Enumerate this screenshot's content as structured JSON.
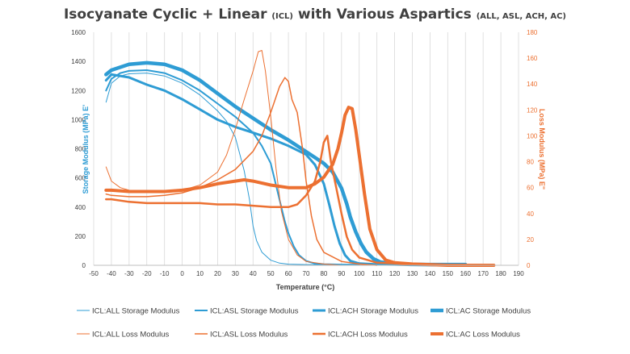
{
  "chart_data": {
    "type": "line",
    "title": {
      "part1": "Isocyanate Cyclic + Linear ",
      "part1_small": "(ICL)",
      "part2": " with Various Aspartics ",
      "part2_small": "(ALL, ASL, ACH, AC)"
    },
    "xlabel": "Temperature (°C)",
    "ylabel_left": "Storage Modulus (MPa) E'",
    "ylabel_right": "Loss Modulus (MPa) E\"",
    "xlim": [
      -50,
      190
    ],
    "ylim_left": [
      0,
      1600
    ],
    "ylim_right": [
      0,
      180
    ],
    "x_ticks": [
      "-50",
      "-40",
      "-30",
      "-20",
      "-10",
      "0",
      "10",
      "20",
      "30",
      "40",
      "50",
      "60",
      "70",
      "80",
      "90",
      "100",
      "110",
      "120",
      "130",
      "140",
      "150",
      "160",
      "170",
      "180",
      "190"
    ],
    "y_left_ticks": [
      "0",
      "200",
      "400",
      "600",
      "800",
      "1000",
      "1200",
      "1400",
      "1600"
    ],
    "y_right_ticks": [
      "0",
      "20",
      "40",
      "60",
      "80",
      "100",
      "120",
      "140",
      "160",
      "180"
    ],
    "grid": "vertical",
    "legend_position": "bottom",
    "colors": {
      "storage": "#2E9CD4",
      "loss": "#EC7031",
      "text": "#404040",
      "grid": "#D9D9D9"
    },
    "series": [
      {
        "name": "ICL:ALL Storage Modulus",
        "axis": "left",
        "width": 1,
        "color": "#2E9CD4",
        "points": [
          [
            -43,
            1120
          ],
          [
            -40,
            1250
          ],
          [
            -35,
            1300
          ],
          [
            -30,
            1315
          ],
          [
            -20,
            1320
          ],
          [
            -10,
            1300
          ],
          [
            0,
            1250
          ],
          [
            10,
            1170
          ],
          [
            20,
            1060
          ],
          [
            25,
            990
          ],
          [
            30,
            880
          ],
          [
            35,
            650
          ],
          [
            38,
            450
          ],
          [
            40,
            270
          ],
          [
            42,
            170
          ],
          [
            45,
            90
          ],
          [
            50,
            35
          ],
          [
            55,
            15
          ],
          [
            60,
            8
          ],
          [
            70,
            5
          ],
          [
            80,
            5
          ]
        ]
      },
      {
        "name": "ICL:ASL Storage Modulus",
        "axis": "left",
        "width": 2,
        "color": "#2E9CD4",
        "points": [
          [
            -43,
            1200
          ],
          [
            -40,
            1280
          ],
          [
            -35,
            1320
          ],
          [
            -30,
            1335
          ],
          [
            -20,
            1340
          ],
          [
            -10,
            1320
          ],
          [
            0,
            1270
          ],
          [
            10,
            1200
          ],
          [
            20,
            1110
          ],
          [
            30,
            1020
          ],
          [
            40,
            910
          ],
          [
            45,
            820
          ],
          [
            50,
            700
          ],
          [
            55,
            450
          ],
          [
            58,
            300
          ],
          [
            60,
            220
          ],
          [
            63,
            130
          ],
          [
            66,
            70
          ],
          [
            70,
            30
          ],
          [
            75,
            12
          ],
          [
            80,
            8
          ],
          [
            90,
            5
          ],
          [
            100,
            5
          ]
        ]
      },
      {
        "name": "ICL:ACH Storage Modulus",
        "axis": "left",
        "width": 3,
        "color": "#2E9CD4",
        "points": [
          [
            -43,
            1270
          ],
          [
            -40,
            1310
          ],
          [
            -30,
            1290
          ],
          [
            -20,
            1240
          ],
          [
            -10,
            1200
          ],
          [
            0,
            1140
          ],
          [
            10,
            1070
          ],
          [
            20,
            1000
          ],
          [
            30,
            950
          ],
          [
            40,
            910
          ],
          [
            50,
            870
          ],
          [
            60,
            820
          ],
          [
            70,
            760
          ],
          [
            75,
            690
          ],
          [
            80,
            560
          ],
          [
            83,
            420
          ],
          [
            86,
            270
          ],
          [
            89,
            150
          ],
          [
            92,
            70
          ],
          [
            95,
            30
          ],
          [
            100,
            12
          ],
          [
            110,
            6
          ],
          [
            120,
            5
          ],
          [
            130,
            5
          ]
        ]
      },
      {
        "name": "ICL:AC Storage Modulus",
        "axis": "left",
        "width": 4.5,
        "color": "#2E9CD4",
        "points": [
          [
            -43,
            1310
          ],
          [
            -40,
            1340
          ],
          [
            -30,
            1380
          ],
          [
            -20,
            1390
          ],
          [
            -10,
            1380
          ],
          [
            0,
            1340
          ],
          [
            10,
            1270
          ],
          [
            20,
            1180
          ],
          [
            30,
            1090
          ],
          [
            40,
            1010
          ],
          [
            50,
            930
          ],
          [
            60,
            860
          ],
          [
            70,
            780
          ],
          [
            80,
            700
          ],
          [
            85,
            640
          ],
          [
            90,
            530
          ],
          [
            93,
            420
          ],
          [
            95,
            330
          ],
          [
            98,
            230
          ],
          [
            101,
            150
          ],
          [
            104,
            90
          ],
          [
            108,
            45
          ],
          [
            112,
            22
          ],
          [
            120,
            10
          ],
          [
            130,
            6
          ],
          [
            140,
            5
          ],
          [
            150,
            5
          ],
          [
            160,
            5
          ]
        ]
      },
      {
        "name": "ICL:ALL Loss Modulus",
        "axis": "right",
        "width": 1,
        "color": "#EC7031",
        "points": [
          [
            -43,
            76
          ],
          [
            -40,
            65
          ],
          [
            -35,
            60
          ],
          [
            -30,
            58
          ],
          [
            -20,
            57
          ],
          [
            -10,
            57
          ],
          [
            0,
            58
          ],
          [
            10,
            62
          ],
          [
            20,
            72
          ],
          [
            25,
            85
          ],
          [
            30,
            105
          ],
          [
            35,
            128
          ],
          [
            40,
            150
          ],
          [
            43,
            165
          ],
          [
            45,
            166
          ],
          [
            47,
            150
          ],
          [
            50,
            115
          ],
          [
            53,
            75
          ],
          [
            56,
            42
          ],
          [
            60,
            20
          ],
          [
            65,
            8
          ],
          [
            70,
            3
          ],
          [
            80,
            1
          ],
          [
            90,
            0
          ]
        ]
      },
      {
        "name": "ICL:ASL Loss Modulus",
        "axis": "right",
        "width": 1.5,
        "color": "#EC7031",
        "points": [
          [
            -43,
            55
          ],
          [
            -40,
            54
          ],
          [
            -30,
            53
          ],
          [
            -20,
            53
          ],
          [
            -10,
            54
          ],
          [
            0,
            56
          ],
          [
            10,
            60
          ],
          [
            20,
            66
          ],
          [
            30,
            74
          ],
          [
            40,
            88
          ],
          [
            45,
            100
          ],
          [
            50,
            118
          ],
          [
            55,
            138
          ],
          [
            58,
            145
          ],
          [
            60,
            142
          ],
          [
            62,
            128
          ],
          [
            65,
            118
          ],
          [
            68,
            90
          ],
          [
            70,
            65
          ],
          [
            73,
            38
          ],
          [
            76,
            20
          ],
          [
            80,
            10
          ],
          [
            90,
            3
          ],
          [
            100,
            1
          ],
          [
            110,
            0
          ]
        ]
      },
      {
        "name": "ICL:ACH Loss Modulus",
        "axis": "right",
        "width": 2.5,
        "color": "#EC7031",
        "points": [
          [
            -43,
            51
          ],
          [
            -40,
            51
          ],
          [
            -30,
            49
          ],
          [
            -20,
            48
          ],
          [
            -10,
            48
          ],
          [
            0,
            48
          ],
          [
            10,
            48
          ],
          [
            20,
            47
          ],
          [
            30,
            47
          ],
          [
            40,
            46
          ],
          [
            50,
            45
          ],
          [
            60,
            45
          ],
          [
            65,
            47
          ],
          [
            70,
            54
          ],
          [
            75,
            65
          ],
          [
            78,
            80
          ],
          [
            80,
            95
          ],
          [
            82,
            100
          ],
          [
            84,
            80
          ],
          [
            87,
            60
          ],
          [
            90,
            40
          ],
          [
            93,
            22
          ],
          [
            96,
            12
          ],
          [
            100,
            6
          ],
          [
            110,
            2
          ],
          [
            130,
            1
          ],
          [
            150,
            0
          ],
          [
            160,
            0
          ]
        ]
      },
      {
        "name": "ICL:AC Loss Modulus",
        "axis": "right",
        "width": 4,
        "color": "#EC7031",
        "points": [
          [
            -43,
            58
          ],
          [
            -40,
            58
          ],
          [
            -30,
            57
          ],
          [
            -20,
            57
          ],
          [
            -10,
            57
          ],
          [
            0,
            58
          ],
          [
            10,
            60
          ],
          [
            20,
            63
          ],
          [
            30,
            65
          ],
          [
            35,
            66
          ],
          [
            40,
            65
          ],
          [
            50,
            62
          ],
          [
            60,
            60
          ],
          [
            70,
            60
          ],
          [
            75,
            63
          ],
          [
            80,
            68
          ],
          [
            85,
            78
          ],
          [
            88,
            90
          ],
          [
            90,
            102
          ],
          [
            92,
            116
          ],
          [
            94,
            122
          ],
          [
            96,
            121
          ],
          [
            98,
            105
          ],
          [
            100,
            85
          ],
          [
            103,
            55
          ],
          [
            106,
            28
          ],
          [
            110,
            12
          ],
          [
            115,
            4
          ],
          [
            120,
            2
          ],
          [
            130,
            1
          ],
          [
            150,
            0
          ],
          [
            170,
            0
          ],
          [
            176,
            0
          ]
        ]
      }
    ]
  }
}
